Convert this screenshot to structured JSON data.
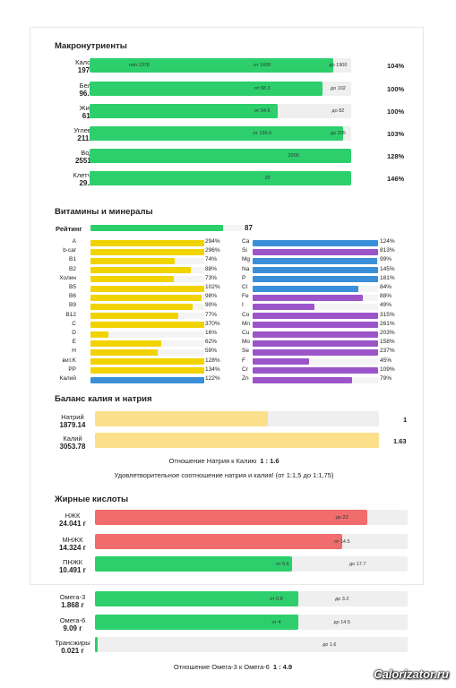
{
  "colors": {
    "green": "#2dcf6c",
    "yellow": "#f1d300",
    "blue": "#3b8fd8",
    "purple": "#9c55c9",
    "red": "#f16c6c",
    "peach": "#fbdf8a",
    "track": "#efefef"
  },
  "macros": {
    "title": "Макронутриенты",
    "rows": [
      {
        "name": "Калории",
        "value": "1977.6",
        "fill_fraction": 0.93,
        "ticks": [
          {
            "label": "min 1378",
            "pos": 0.19
          },
          {
            "label": "от 1600",
            "pos": 0.66
          },
          {
            "label": "до 1900",
            "pos": 0.95
          }
        ],
        "percent": "104%"
      },
      {
        "name": "Белки",
        "value": "96.6 г",
        "fill_fraction": 0.89,
        "ticks": [
          {
            "label": "от 68.3",
            "pos": 0.66
          },
          {
            "label": "до 102",
            "pos": 0.95
          }
        ],
        "percent": "100%"
      },
      {
        "name": "Жиры",
        "value": "61 г",
        "fill_fraction": 0.72,
        "ticks": [
          {
            "label": "от 54.6",
            "pos": 0.66
          },
          {
            "label": "до 82",
            "pos": 0.95
          }
        ],
        "percent": "100%"
      },
      {
        "name": "Углеводы",
        "value": "211.3 г",
        "fill_fraction": 0.97,
        "ticks": [
          {
            "label": "от 136.6",
            "pos": 0.66
          },
          {
            "label": "до 205",
            "pos": 0.95
          }
        ],
        "percent": "103%"
      },
      {
        "name": "Вода",
        "value": "2551.5 г",
        "fill_fraction": 1.0,
        "ticks": [
          {
            "label": "2000",
            "pos": 0.78
          }
        ],
        "percent": "128%"
      },
      {
        "name": "Клетчатка",
        "value": "29.2 г",
        "fill_fraction": 1.0,
        "ticks": [
          {
            "label": "20",
            "pos": 0.68
          }
        ],
        "percent": "146%"
      }
    ]
  },
  "vitamins": {
    "title": "Витамины и минералы",
    "rating_label": "Рейтинг",
    "rating_value": "87",
    "rating_fraction": 0.87,
    "left": [
      {
        "name": "A",
        "value": "294%",
        "fill_fraction": 1.0,
        "color": "yellow"
      },
      {
        "name": "b-car",
        "value": "296%",
        "fill_fraction": 1.0,
        "color": "yellow"
      },
      {
        "name": "B1",
        "value": "74%",
        "fill_fraction": 0.74,
        "color": "yellow"
      },
      {
        "name": "B2",
        "value": "88%",
        "fill_fraction": 0.88,
        "color": "yellow"
      },
      {
        "name": "Холин",
        "value": "73%",
        "fill_fraction": 0.73,
        "color": "yellow"
      },
      {
        "name": "B5",
        "value": "102%",
        "fill_fraction": 1.0,
        "color": "yellow"
      },
      {
        "name": "B6",
        "value": "98%",
        "fill_fraction": 0.98,
        "color": "yellow"
      },
      {
        "name": "B9",
        "value": "90%",
        "fill_fraction": 0.9,
        "color": "yellow"
      },
      {
        "name": "B12",
        "value": "77%",
        "fill_fraction": 0.77,
        "color": "yellow"
      },
      {
        "name": "C",
        "value": "370%",
        "fill_fraction": 1.0,
        "color": "yellow"
      },
      {
        "name": "D",
        "value": "16%",
        "fill_fraction": 0.16,
        "color": "yellow"
      },
      {
        "name": "E",
        "value": "62%",
        "fill_fraction": 0.62,
        "color": "yellow"
      },
      {
        "name": "H",
        "value": "59%",
        "fill_fraction": 0.59,
        "color": "yellow"
      },
      {
        "name": "вит.K",
        "value": "128%",
        "fill_fraction": 1.0,
        "color": "yellow"
      },
      {
        "name": "PP",
        "value": "134%",
        "fill_fraction": 1.0,
        "color": "yellow"
      },
      {
        "name": "Калий",
        "value": "122%",
        "fill_fraction": 1.0,
        "color": "blue"
      }
    ],
    "right": [
      {
        "name": "Ca",
        "value": "124%",
        "fill_fraction": 1.0,
        "color": "blue"
      },
      {
        "name": "Si",
        "value": "813%",
        "fill_fraction": 1.0,
        "color": "purple"
      },
      {
        "name": "Mg",
        "value": "99%",
        "fill_fraction": 0.99,
        "color": "blue"
      },
      {
        "name": "Na",
        "value": "145%",
        "fill_fraction": 1.0,
        "color": "blue"
      },
      {
        "name": "P",
        "value": "181%",
        "fill_fraction": 1.0,
        "color": "blue"
      },
      {
        "name": "Cl",
        "value": "84%",
        "fill_fraction": 0.84,
        "color": "blue"
      },
      {
        "name": "Fe",
        "value": "88%",
        "fill_fraction": 0.88,
        "color": "purple"
      },
      {
        "name": "I",
        "value": "49%",
        "fill_fraction": 0.49,
        "color": "purple"
      },
      {
        "name": "Co",
        "value": "315%",
        "fill_fraction": 1.0,
        "color": "purple"
      },
      {
        "name": "Mn",
        "value": "261%",
        "fill_fraction": 1.0,
        "color": "purple"
      },
      {
        "name": "Cu",
        "value": "203%",
        "fill_fraction": 1.0,
        "color": "purple"
      },
      {
        "name": "Mo",
        "value": "158%",
        "fill_fraction": 1.0,
        "color": "purple"
      },
      {
        "name": "Se",
        "value": "237%",
        "fill_fraction": 1.0,
        "color": "purple"
      },
      {
        "name": "F",
        "value": "45%",
        "fill_fraction": 0.45,
        "color": "purple"
      },
      {
        "name": "Cr",
        "value": "109%",
        "fill_fraction": 1.0,
        "color": "purple"
      },
      {
        "name": "Zn",
        "value": "79%",
        "fill_fraction": 0.79,
        "color": "purple"
      }
    ]
  },
  "balance": {
    "title": "Баланс калия и натрия",
    "rows": [
      {
        "name": "Натрий",
        "value": "1879.14",
        "fill_fraction": 0.61,
        "right": "1"
      },
      {
        "name": "Калий",
        "value": "3053.78",
        "fill_fraction": 1.0,
        "right": "1.63"
      }
    ],
    "ratio_text": "Отношение Натрия к Калию",
    "ratio_value": "1 : 1.6",
    "verdict": "Удовлетворительное соотношение натрия и калия! (от 1:1,5 до 1:1,75)"
  },
  "fatty": {
    "title": "Жирные кислоты",
    "rows": [
      {
        "name": "НЖК",
        "value": "24.041 г",
        "fill_fraction": 0.87,
        "color": "red",
        "ticks": [
          {
            "label": "до 22",
            "pos": 0.79
          }
        ]
      },
      {
        "name": "МНЖК",
        "value": "14.324 г",
        "fill_fraction": 0.79,
        "color": "red",
        "ticks": [
          {
            "label": "от 14.5",
            "pos": 0.79
          }
        ]
      },
      {
        "name": "ПНЖК",
        "value": "10.491 г",
        "fill_fraction": 0.63,
        "color": "green",
        "ticks": [
          {
            "label": "от 9.6",
            "pos": 0.6
          },
          {
            "label": "до 17.7",
            "pos": 0.84
          }
        ]
      },
      {
        "name": "Омега-3",
        "value": "1.868 г",
        "fill_fraction": 0.65,
        "color": "green",
        "ticks": [
          {
            "label": "от 0.8",
            "pos": 0.58
          },
          {
            "label": "до 3.2",
            "pos": 0.79
          }
        ]
      },
      {
        "name": "Омега-6",
        "value": "9.09 г",
        "fill_fraction": 0.65,
        "color": "green",
        "ticks": [
          {
            "label": "от 4",
            "pos": 0.58
          },
          {
            "label": "до 14.5",
            "pos": 0.79
          }
        ]
      },
      {
        "name": "Трансжиры",
        "value": "0.021 г",
        "fill_fraction": 0.01,
        "color": "green",
        "ticks": [
          {
            "label": "до 1.6",
            "pos": 0.75
          }
        ]
      }
    ],
    "ratio_text": "Отношение Омега-3 к Омега-6",
    "ratio_value": "1 : 4.9"
  },
  "watermark": "Calorizator.ru"
}
